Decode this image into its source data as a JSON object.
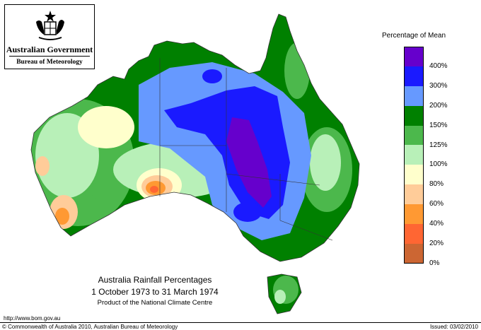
{
  "header": {
    "government": "Australian Government",
    "bureau": "Bureau of Meteorology"
  },
  "title": {
    "line1": "Australia Rainfall Percentages",
    "line2": "1 October 1973 to 31 March 1974",
    "product": "Product of the National Climate Centre"
  },
  "legend": {
    "title": "Percentage of Mean",
    "bands": [
      {
        "color": "#6600cc",
        "label": "400%"
      },
      {
        "color": "#1a1aff",
        "label": "300%"
      },
      {
        "color": "#6699ff",
        "label": "200%"
      },
      {
        "color": "#008000",
        "label": "150%"
      },
      {
        "color": "#4cb84c",
        "label": "125%"
      },
      {
        "color": "#b8f0b8",
        "label": "100%"
      },
      {
        "color": "#ffffcc",
        "label": "80%"
      },
      {
        "color": "#ffcc99",
        "label": "60%"
      },
      {
        "color": "#ff9933",
        "label": "40%"
      },
      {
        "color": "#ff6633",
        "label": "20%"
      },
      {
        "color": "#cc6633",
        "label": "0%"
      }
    ]
  },
  "footer": {
    "url": "http://www.bom.gov.au",
    "copyright": "© Commonwealth of Australia 2010, Australian Bureau of Meteorology",
    "issued": "Issued: 03/02/2010"
  }
}
